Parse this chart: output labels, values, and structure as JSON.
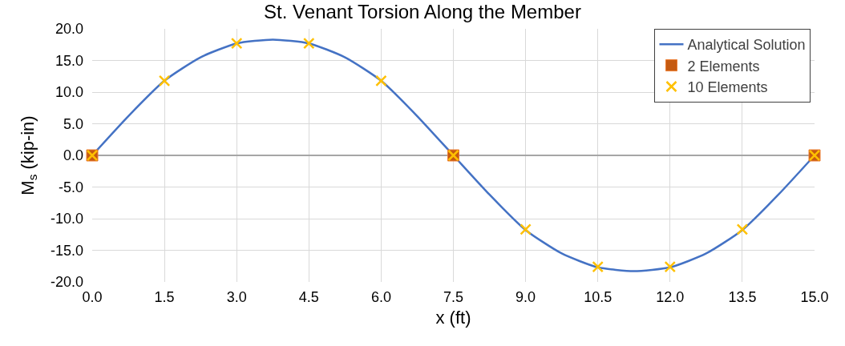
{
  "chart_data": {
    "type": "line",
    "title": "St. Venant Torsion Along the Member",
    "xlabel": "x (ft)",
    "ylabel": "M$_{s}$ (kip-in)",
    "xlim": [
      0,
      15
    ],
    "xticks": [
      {
        "value": 0,
        "label": "0.0"
      },
      {
        "value": 1.5,
        "label": "1.5"
      },
      {
        "value": 3,
        "label": "3.0"
      },
      {
        "value": 4.5,
        "label": "4.5"
      },
      {
        "value": 6,
        "label": "6.0"
      },
      {
        "value": 7.5,
        "label": "7.5"
      },
      {
        "value": 9,
        "label": "9.0"
      },
      {
        "value": 10.5,
        "label": "10.5"
      },
      {
        "value": 12,
        "label": "12.0"
      },
      {
        "value": 13.5,
        "label": "13.5"
      },
      {
        "value": 15,
        "label": "15.0"
      }
    ],
    "ylim": [
      -20,
      20
    ],
    "yticks": [
      {
        "value": -20,
        "label": "-20.0"
      },
      {
        "value": -15,
        "label": "-15.0"
      },
      {
        "value": -10,
        "label": "-10.0"
      },
      {
        "value": -5,
        "label": "-5.0"
      },
      {
        "value": 0,
        "label": "0.0"
      },
      {
        "value": 5,
        "label": "5.0"
      },
      {
        "value": 10,
        "label": "10.0"
      },
      {
        "value": 15,
        "label": "15.0"
      },
      {
        "value": 20,
        "label": "20.0"
      }
    ],
    "grid": true,
    "legend": "top right",
    "series": [
      {
        "name": "Analytical Solution",
        "type": "line",
        "marker": "none",
        "color": "#4472c4",
        "x": [
          0,
          0.75,
          1.5,
          2.25,
          3,
          3.75,
          4.5,
          5.25,
          6,
          6.75,
          7.5,
          8.25,
          9,
          9.75,
          10.5,
          11.25,
          12,
          12.75,
          13.5,
          14.25,
          15
        ],
        "values": [
          0,
          6.2,
          11.8,
          15.5,
          17.7,
          18.3,
          17.7,
          15.5,
          11.8,
          6.2,
          0,
          -6.2,
          -11.8,
          -15.5,
          -17.7,
          -18.3,
          -17.7,
          -15.5,
          -11.8,
          -6.2,
          0
        ]
      },
      {
        "name": "2 Elements",
        "type": "scatter",
        "marker": "square",
        "color": "#c55a11",
        "x": [
          0,
          7.5,
          15
        ],
        "values": [
          0,
          0,
          0
        ]
      },
      {
        "name": "10 Elements",
        "type": "scatter",
        "marker": "cross",
        "color": "#ffc000",
        "x": [
          0,
          1.5,
          3,
          4.5,
          6,
          7.5,
          9,
          10.5,
          12,
          13.5,
          15
        ],
        "values": [
          0,
          11.8,
          17.7,
          17.7,
          11.8,
          0,
          -11.7,
          -17.6,
          -17.6,
          -11.7,
          0
        ]
      }
    ]
  }
}
